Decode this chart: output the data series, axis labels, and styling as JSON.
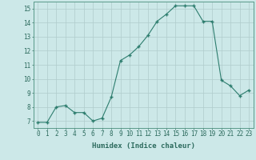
{
  "x": [
    0,
    1,
    2,
    3,
    4,
    5,
    6,
    7,
    8,
    9,
    10,
    11,
    12,
    13,
    14,
    15,
    16,
    17,
    18,
    19,
    20,
    21,
    22,
    23
  ],
  "y": [
    6.9,
    6.9,
    8.0,
    8.1,
    7.6,
    7.6,
    7.0,
    7.2,
    8.7,
    11.3,
    11.7,
    12.3,
    13.1,
    14.1,
    14.6,
    15.2,
    15.2,
    15.2,
    14.1,
    14.1,
    9.9,
    9.5,
    8.8,
    9.2
  ],
  "line_color": "#2d7d6e",
  "marker": "+",
  "marker_size": 3.5,
  "bg_color": "#cce8e8",
  "grid_color": "#b0cccc",
  "xlabel": "Humidex (Indice chaleur)",
  "xlim": [
    -0.5,
    23.5
  ],
  "ylim": [
    6.5,
    15.5
  ],
  "yticks": [
    7,
    8,
    9,
    10,
    11,
    12,
    13,
    14,
    15
  ],
  "xticks": [
    0,
    1,
    2,
    3,
    4,
    5,
    6,
    7,
    8,
    9,
    10,
    11,
    12,
    13,
    14,
    15,
    16,
    17,
    18,
    19,
    20,
    21,
    22,
    23
  ],
  "xlabel_fontsize": 6.5,
  "tick_fontsize": 5.5,
  "tick_color": "#2d6b5e",
  "axis_color": "#5a9a8a"
}
